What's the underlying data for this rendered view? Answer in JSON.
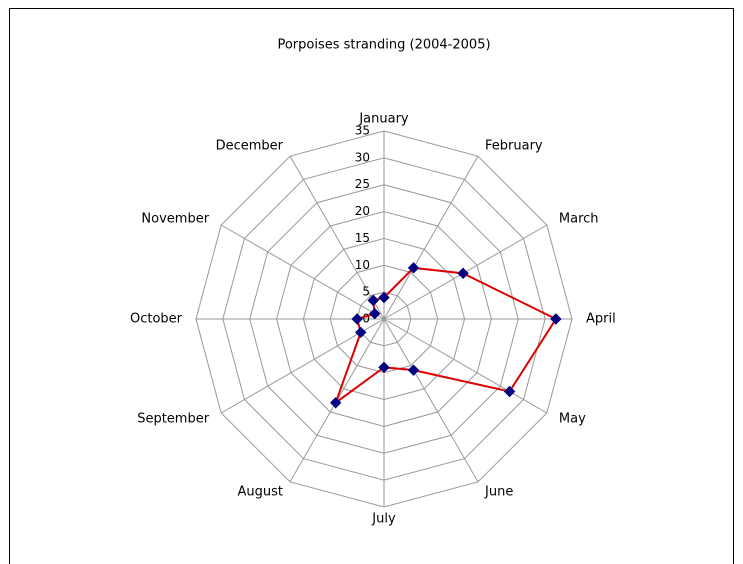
{
  "chart_data": {
    "type": "radar",
    "title": "Porpoises stranding (2004-2005)",
    "categories": [
      "January",
      "February",
      "March",
      "April",
      "May",
      "June",
      "July",
      "August",
      "September",
      "October",
      "November",
      "December"
    ],
    "series": [
      {
        "name": "Porpoises stranding",
        "color": "#dd0000",
        "marker_color": "#000080",
        "values": [
          4,
          11,
          17,
          32,
          27,
          11,
          9,
          18,
          5,
          5,
          2,
          4
        ]
      }
    ],
    "ylim": [
      0,
      35
    ],
    "yticks": [
      0,
      5,
      10,
      15,
      20,
      25,
      30,
      35
    ],
    "grid": true
  }
}
